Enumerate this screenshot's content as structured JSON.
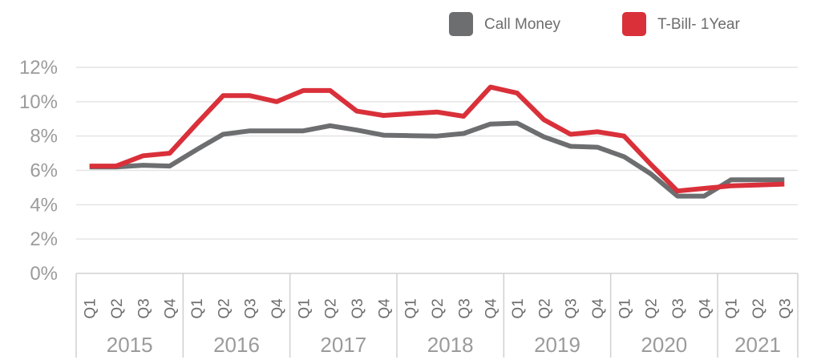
{
  "chart_data": {
    "type": "line",
    "title": "",
    "xlabel": "",
    "ylabel": "",
    "ylim": [
      0,
      12
    ],
    "yticks": [
      "0%",
      "2%",
      "4%",
      "6%",
      "8%",
      "10%",
      "12%"
    ],
    "grid": true,
    "legend_position": "top-right",
    "categories": [
      "Q1",
      "Q2",
      "Q3",
      "Q4",
      "Q1",
      "Q2",
      "Q3",
      "Q4",
      "Q1",
      "Q2",
      "Q3",
      "Q4",
      "Q1",
      "Q2",
      "Q3",
      "Q4",
      "Q1",
      "Q2",
      "Q3",
      "Q4",
      "Q1",
      "Q2",
      "Q3",
      "Q4",
      "Q1",
      "Q2",
      "Q3"
    ],
    "years": [
      {
        "label": "2015",
        "quarters": 4
      },
      {
        "label": "2016",
        "quarters": 4
      },
      {
        "label": "2017",
        "quarters": 4
      },
      {
        "label": "2018",
        "quarters": 4
      },
      {
        "label": "2019",
        "quarters": 4
      },
      {
        "label": "2020",
        "quarters": 4
      },
      {
        "label": "2021",
        "quarters": 3
      }
    ],
    "series": [
      {
        "name": "Call Money",
        "color": "#6d6e70",
        "values": [
          6.2,
          6.2,
          6.3,
          6.25,
          7.2,
          8.1,
          8.3,
          8.3,
          8.3,
          8.6,
          8.35,
          8.05,
          8.02,
          8.0,
          8.15,
          8.7,
          8.75,
          7.95,
          7.4,
          7.35,
          6.8,
          5.8,
          4.5,
          4.5,
          5.45,
          5.45,
          5.45
        ]
      },
      {
        "name": "T-Bill- 1Year",
        "color": "#d9303a",
        "values": [
          6.25,
          6.25,
          6.85,
          7.0,
          8.7,
          10.35,
          10.35,
          10.0,
          10.65,
          10.65,
          9.45,
          9.2,
          9.3,
          9.4,
          9.15,
          10.85,
          10.5,
          8.95,
          8.1,
          8.25,
          8.0,
          6.35,
          4.8,
          4.95,
          5.1,
          5.15,
          5.2
        ]
      }
    ]
  }
}
